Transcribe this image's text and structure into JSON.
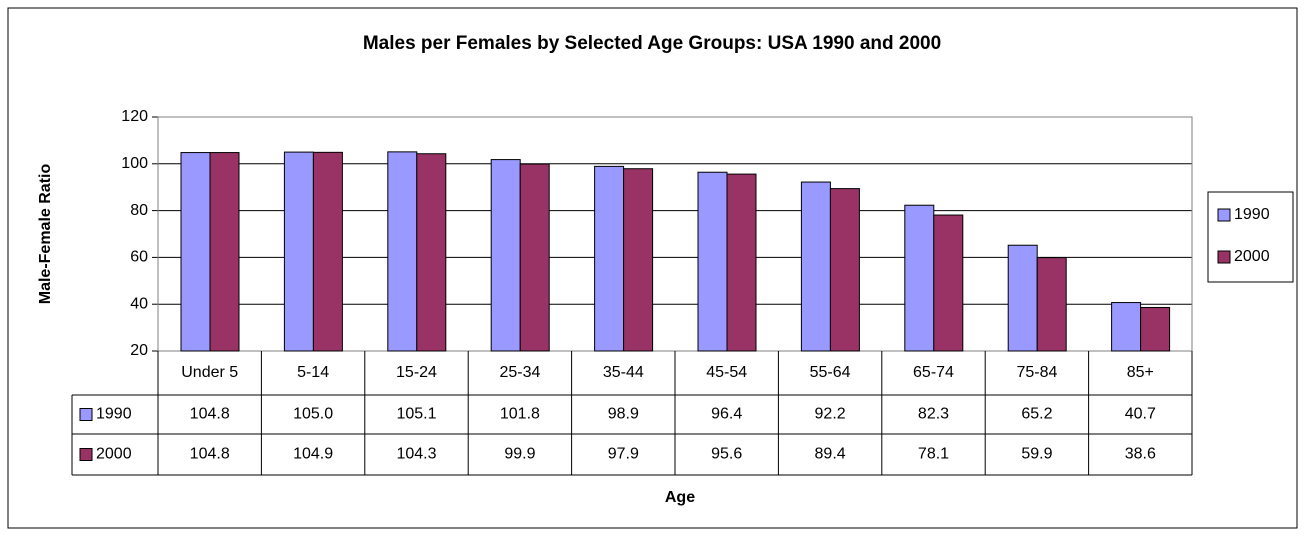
{
  "chart_data": {
    "type": "bar",
    "title": "Males per Females by Selected Age Groups: USA 1990 and 2000",
    "x_label": "Age",
    "y_label": "Male-Female Ratio",
    "categories": [
      "Under 5",
      "5-14",
      "15-24",
      "25-34",
      "35-44",
      "45-54",
      "55-64",
      "65-74",
      "75-84",
      "85+"
    ],
    "series": [
      {
        "name": "1990",
        "color": "#9999ff",
        "values": [
          104.8,
          105.0,
          105.1,
          101.8,
          98.9,
          96.4,
          92.2,
          82.3,
          65.2,
          40.7
        ],
        "value_labels": [
          "104.8",
          "105.0",
          "105.1",
          "101.8",
          "98.9",
          "96.4",
          "92.2",
          "82.3",
          "65.2",
          "40.7"
        ]
      },
      {
        "name": "2000",
        "color": "#993366",
        "values": [
          104.8,
          104.9,
          104.3,
          99.9,
          97.9,
          95.6,
          89.4,
          78.1,
          59.9,
          38.6
        ],
        "value_labels": [
          "104.8",
          "104.9",
          "104.3",
          "99.9",
          "97.9",
          "95.6",
          "89.4",
          "78.1",
          "59.9",
          "38.6"
        ]
      }
    ],
    "ylim": [
      20,
      120
    ],
    "yticks": [
      20,
      40,
      60,
      80,
      100,
      120
    ],
    "grid": true,
    "legend": "right"
  }
}
